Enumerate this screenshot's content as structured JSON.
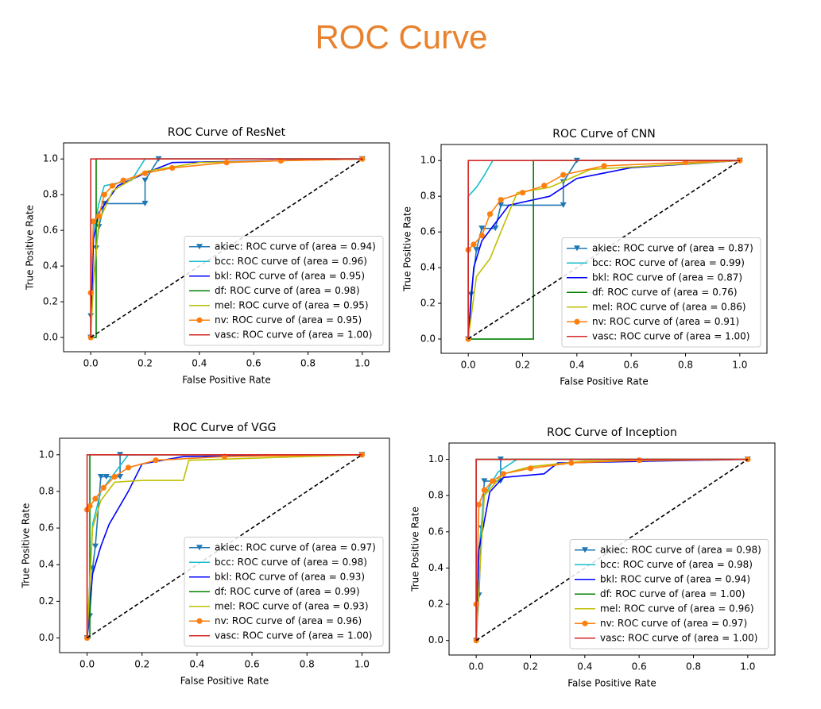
{
  "title": "ROC Curve",
  "chart_data": [
    {
      "type": "line",
      "title": "ROC Curve of ResNet",
      "x_label": "False Positive Rate",
      "y_label": "True Positive Rate",
      "xlim": [
        -0.1,
        1.1
      ],
      "ylim": [
        -0.08,
        1.09
      ],
      "xticks": [
        {
          "value": 0,
          "label": "0.0"
        },
        {
          "value": 0.2,
          "label": "0.2"
        },
        {
          "value": 0.4,
          "label": "0.4"
        },
        {
          "value": 0.6,
          "label": "0.6"
        },
        {
          "value": 0.8,
          "label": "0.8"
        },
        {
          "value": 1,
          "label": "1.0"
        }
      ],
      "yticks": [
        {
          "value": 0,
          "label": "0.0"
        },
        {
          "value": 0.2,
          "label": "0.2"
        },
        {
          "value": 0.4,
          "label": "0.4"
        },
        {
          "value": 0.6,
          "label": "0.6"
        },
        {
          "value": 0.8,
          "label": "0.8"
        },
        {
          "value": 1,
          "label": "1.0"
        }
      ],
      "legend": "lower right",
      "reference_line": {
        "x": [
          0,
          1
        ],
        "y": [
          0,
          1
        ],
        "color": "#000000",
        "style": "dashed"
      },
      "series": [
        {
          "name": "akiec: ROC curve of (area = 0.94)",
          "color": "#1f77b4",
          "marker": "v",
          "x": [
            0,
            0,
            0.02,
            0.03,
            0.05,
            0.2,
            0.2,
            0.25,
            1
          ],
          "y": [
            0,
            0.12,
            0.5,
            0.62,
            0.75,
            0.75,
            0.88,
            1,
            1
          ]
        },
        {
          "name": "bcc: ROC curve of (area = 0.96)",
          "color": "#17becf",
          "marker": "none",
          "x": [
            0,
            0.01,
            0.03,
            0.05,
            0.15,
            0.2,
            1
          ],
          "y": [
            0,
            0.6,
            0.75,
            0.85,
            0.88,
            1,
            1
          ]
        },
        {
          "name": "bkl: ROC curve of (area = 0.95)",
          "color": "#0000ff",
          "marker": "none",
          "x": [
            0,
            0.01,
            0.03,
            0.1,
            0.2,
            0.3,
            1
          ],
          "y": [
            0,
            0.55,
            0.7,
            0.85,
            0.92,
            0.98,
            1
          ]
        },
        {
          "name": "df: ROC curve of (area = 0.98)",
          "color": "#008000",
          "marker": "none",
          "x": [
            0,
            0.02,
            0.02,
            1
          ],
          "y": [
            0,
            0,
            1,
            1
          ]
        },
        {
          "name": "mel: ROC curve of (area = 0.95)",
          "color": "#bfbf00",
          "marker": "none",
          "x": [
            0,
            0.01,
            0.03,
            0.08,
            0.2,
            0.4,
            1
          ],
          "y": [
            0,
            0.3,
            0.65,
            0.82,
            0.93,
            0.98,
            1
          ]
        },
        {
          "name": "nv: ROC curve of (area = 0.95)",
          "color": "#ff7f0e",
          "marker": "o",
          "x": [
            0,
            0,
            0.01,
            0.03,
            0.05,
            0.08,
            0.12,
            0.2,
            0.3,
            0.5,
            0.7,
            1
          ],
          "y": [
            0,
            0.25,
            0.65,
            0.68,
            0.8,
            0.85,
            0.88,
            0.92,
            0.95,
            0.98,
            0.99,
            1
          ]
        },
        {
          "name": "vasc: ROC curve of (area = 1.00)",
          "color": "#d62728",
          "marker": "none",
          "x": [
            0,
            0,
            1
          ],
          "y": [
            0,
            1,
            1
          ]
        }
      ]
    },
    {
      "type": "line",
      "title": "ROC Curve of CNN",
      "x_label": "False Positive Rate",
      "y_label": "True Positive Rate",
      "xlim": [
        -0.1,
        1.1
      ],
      "ylim": [
        -0.08,
        1.09
      ],
      "xticks": [
        {
          "value": 0,
          "label": "0.0"
        },
        {
          "value": 0.2,
          "label": "0.2"
        },
        {
          "value": 0.4,
          "label": "0.4"
        },
        {
          "value": 0.6,
          "label": "0.6"
        },
        {
          "value": 0.8,
          "label": "0.8"
        },
        {
          "value": 1,
          "label": "1.0"
        }
      ],
      "yticks": [
        {
          "value": 0,
          "label": "0.0"
        },
        {
          "value": 0.2,
          "label": "0.2"
        },
        {
          "value": 0.4,
          "label": "0.4"
        },
        {
          "value": 0.6,
          "label": "0.6"
        },
        {
          "value": 0.8,
          "label": "0.8"
        },
        {
          "value": 1,
          "label": "1.0"
        }
      ],
      "legend": "lower right",
      "reference_line": {
        "x": [
          0,
          1
        ],
        "y": [
          0,
          1
        ],
        "color": "#000000",
        "style": "dashed"
      },
      "series": [
        {
          "name": "akiec: ROC curve of (area = 0.87)",
          "color": "#1f77b4",
          "marker": "v",
          "x": [
            0,
            0.01,
            0.03,
            0.05,
            0.1,
            0.12,
            0.35,
            0.35,
            0.4,
            1
          ],
          "y": [
            0,
            0.25,
            0.5,
            0.62,
            0.62,
            0.75,
            0.75,
            0.88,
            1,
            1
          ]
        },
        {
          "name": "bcc: ROC curve of (area = 0.99)",
          "color": "#17becf",
          "marker": "none",
          "x": [
            0,
            0,
            0.03,
            0.06,
            0.09,
            1
          ],
          "y": [
            0,
            0.8,
            0.85,
            0.92,
            1,
            1
          ]
        },
        {
          "name": "bkl: ROC curve of (area = 0.87)",
          "color": "#0000ff",
          "marker": "none",
          "x": [
            0,
            0.02,
            0.05,
            0.1,
            0.15,
            0.3,
            0.4,
            0.6,
            1
          ],
          "y": [
            0,
            0.4,
            0.55,
            0.65,
            0.75,
            0.8,
            0.9,
            0.96,
            1
          ]
        },
        {
          "name": "df: ROC curve of (area = 0.76)",
          "color": "#008000",
          "marker": "none",
          "x": [
            0,
            0.24,
            0.24,
            1
          ],
          "y": [
            0,
            0,
            1,
            1
          ]
        },
        {
          "name": "mel: ROC curve of (area = 0.86)",
          "color": "#bfbf00",
          "marker": "none",
          "x": [
            0,
            0.03,
            0.08,
            0.12,
            0.18,
            0.3,
            0.45,
            1
          ],
          "y": [
            0,
            0.35,
            0.45,
            0.6,
            0.82,
            0.85,
            0.95,
            1
          ]
        },
        {
          "name": "nv: ROC curve of (area = 0.91)",
          "color": "#ff7f0e",
          "marker": "o",
          "x": [
            0,
            0,
            0.02,
            0.05,
            0.08,
            0.12,
            0.2,
            0.28,
            0.35,
            0.5,
            0.8,
            1
          ],
          "y": [
            0,
            0.5,
            0.53,
            0.58,
            0.7,
            0.78,
            0.82,
            0.86,
            0.92,
            0.97,
            0.99,
            1
          ]
        },
        {
          "name": "vasc: ROC curve of (area = 1.00)",
          "color": "#d62728",
          "marker": "none",
          "x": [
            0,
            0,
            1
          ],
          "y": [
            0,
            1,
            1
          ]
        }
      ]
    },
    {
      "type": "line",
      "title": "ROC Curve of VGG",
      "x_label": "False Positive Rate",
      "y_label": "True Positive Rate",
      "xlim": [
        -0.1,
        1.1
      ],
      "ylim": [
        -0.08,
        1.09
      ],
      "xticks": [
        {
          "value": 0,
          "label": "0.0"
        },
        {
          "value": 0.2,
          "label": "0.2"
        },
        {
          "value": 0.4,
          "label": "0.4"
        },
        {
          "value": 0.6,
          "label": "0.6"
        },
        {
          "value": 0.8,
          "label": "0.8"
        },
        {
          "value": 1,
          "label": "1.0"
        }
      ],
      "yticks": [
        {
          "value": 0,
          "label": "0.0"
        },
        {
          "value": 0.2,
          "label": "0.2"
        },
        {
          "value": 0.4,
          "label": "0.4"
        },
        {
          "value": 0.6,
          "label": "0.6"
        },
        {
          "value": 0.8,
          "label": "0.8"
        },
        {
          "value": 1,
          "label": "1.0"
        }
      ],
      "legend": "lower right",
      "reference_line": {
        "x": [
          0,
          1
        ],
        "y": [
          0,
          1
        ],
        "color": "#000000",
        "style": "dashed"
      },
      "series": [
        {
          "name": "akiec: ROC curve of (area = 0.97)",
          "color": "#1f77b4",
          "marker": "v",
          "x": [
            0,
            0.01,
            0.02,
            0.03,
            0.05,
            0.07,
            0.12,
            0.12,
            1
          ],
          "y": [
            0,
            0.12,
            0.38,
            0.5,
            0.88,
            0.88,
            0.88,
            1,
            1
          ]
        },
        {
          "name": "bcc: ROC curve of (area = 0.98)",
          "color": "#17becf",
          "marker": "none",
          "x": [
            0,
            0.02,
            0.05,
            0.1,
            0.15,
            1
          ],
          "y": [
            0,
            0.62,
            0.8,
            0.9,
            1,
            1
          ]
        },
        {
          "name": "bkl: ROC curve of (area = 0.93)",
          "color": "#0000ff",
          "marker": "none",
          "x": [
            0,
            0.02,
            0.05,
            0.08,
            0.15,
            0.2,
            0.35,
            1
          ],
          "y": [
            0,
            0.35,
            0.5,
            0.62,
            0.8,
            0.95,
            0.99,
            1
          ]
        },
        {
          "name": "df: ROC curve of (area = 0.99)",
          "color": "#008000",
          "marker": "none",
          "x": [
            0,
            0.01,
            0.01,
            1
          ],
          "y": [
            0,
            0,
            1,
            1
          ]
        },
        {
          "name": "mel: ROC curve of (area = 0.93)",
          "color": "#bfbf00",
          "marker": "none",
          "x": [
            0,
            0.02,
            0.05,
            0.1,
            0.2,
            0.35,
            0.37,
            1
          ],
          "y": [
            0,
            0.6,
            0.75,
            0.85,
            0.86,
            0.86,
            0.97,
            1
          ]
        },
        {
          "name": "nv: ROC curve of (area = 0.96)",
          "color": "#ff7f0e",
          "marker": "o",
          "x": [
            0,
            0,
            0.01,
            0.03,
            0.06,
            0.1,
            0.15,
            0.25,
            0.5,
            1
          ],
          "y": [
            0,
            0.7,
            0.72,
            0.76,
            0.82,
            0.88,
            0.93,
            0.97,
            0.99,
            1
          ]
        },
        {
          "name": "vasc: ROC curve of (area = 1.00)",
          "color": "#d62728",
          "marker": "none",
          "x": [
            0,
            0,
            1
          ],
          "y": [
            0,
            1,
            1
          ]
        }
      ]
    },
    {
      "type": "line",
      "title": "ROC Curve of Inception",
      "x_label": "False Positive Rate",
      "y_label": "True Positive Rate",
      "xlim": [
        -0.1,
        1.1
      ],
      "ylim": [
        -0.08,
        1.09
      ],
      "xticks": [
        {
          "value": 0,
          "label": "0.0"
        },
        {
          "value": 0.2,
          "label": "0.2"
        },
        {
          "value": 0.4,
          "label": "0.4"
        },
        {
          "value": 0.6,
          "label": "0.6"
        },
        {
          "value": 0.8,
          "label": "0.8"
        },
        {
          "value": 1,
          "label": "1.0"
        }
      ],
      "yticks": [
        {
          "value": 0,
          "label": "0.0"
        },
        {
          "value": 0.2,
          "label": "0.2"
        },
        {
          "value": 0.4,
          "label": "0.4"
        },
        {
          "value": 0.6,
          "label": "0.6"
        },
        {
          "value": 0.8,
          "label": "0.8"
        },
        {
          "value": 1,
          "label": "1.0"
        }
      ],
      "legend": "lower right",
      "reference_line": {
        "x": [
          0,
          1
        ],
        "y": [
          0,
          1
        ],
        "color": "#000000",
        "style": "dashed"
      },
      "series": [
        {
          "name": "akiec: ROC curve of (area = 0.98)",
          "color": "#1f77b4",
          "marker": "v",
          "x": [
            0,
            0.01,
            0.02,
            0.03,
            0.09,
            0.09,
            1
          ],
          "y": [
            0,
            0.25,
            0.62,
            0.88,
            0.88,
            1,
            1
          ]
        },
        {
          "name": "bcc: ROC curve of (area = 0.98)",
          "color": "#17becf",
          "marker": "none",
          "x": [
            0,
            0.01,
            0.03,
            0.08,
            0.15,
            1
          ],
          "y": [
            0,
            0.5,
            0.8,
            0.93,
            1,
            1
          ]
        },
        {
          "name": "bkl: ROC curve of (area = 0.94)",
          "color": "#0000ff",
          "marker": "none",
          "x": [
            0,
            0.01,
            0.05,
            0.1,
            0.25,
            0.3,
            1
          ],
          "y": [
            0,
            0.5,
            0.82,
            0.9,
            0.92,
            0.98,
            1
          ]
        },
        {
          "name": "df: ROC curve of (area = 1.00)",
          "color": "#008000",
          "marker": "none",
          "x": [
            0,
            0,
            1
          ],
          "y": [
            0,
            1,
            1
          ]
        },
        {
          "name": "mel: ROC curve of (area = 0.96)",
          "color": "#bfbf00",
          "marker": "none",
          "x": [
            0,
            0.01,
            0.03,
            0.1,
            0.2,
            0.4,
            1
          ],
          "y": [
            0,
            0.3,
            0.8,
            0.92,
            0.96,
            0.99,
            1
          ]
        },
        {
          "name": "nv: ROC curve of (area = 0.97)",
          "color": "#ff7f0e",
          "marker": "o",
          "x": [
            0,
            0,
            0.01,
            0.03,
            0.06,
            0.1,
            0.2,
            0.35,
            0.6,
            1
          ],
          "y": [
            0,
            0.2,
            0.75,
            0.83,
            0.88,
            0.92,
            0.95,
            0.98,
            0.995,
            1
          ]
        },
        {
          "name": "vasc: ROC curve of (area = 1.00)",
          "color": "#d62728",
          "marker": "none",
          "x": [
            0,
            0,
            1
          ],
          "y": [
            0,
            1,
            1
          ]
        }
      ]
    }
  ]
}
